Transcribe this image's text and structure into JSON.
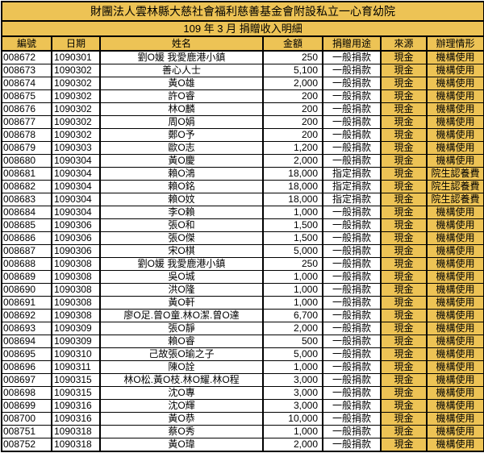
{
  "title": "財團法人雲林縣大慈社會福利慈善基金會附設私立一心育幼院",
  "subtitle": "109 年 3 月  捐贈收入明細",
  "colors": {
    "header_bg": "#EDC355",
    "border": "#000000",
    "row_bg": "#FFFFFF",
    "text": "#000000"
  },
  "table": {
    "columns": [
      {
        "key": "id",
        "label": "編號",
        "align": "left"
      },
      {
        "key": "date",
        "label": "日期",
        "align": "left"
      },
      {
        "key": "name",
        "label": "姓名",
        "align": "center"
      },
      {
        "key": "amount",
        "label": "金額",
        "align": "right"
      },
      {
        "key": "purpose",
        "label": "捐贈用途",
        "align": "center"
      },
      {
        "key": "source",
        "label": "來源",
        "align": "center"
      },
      {
        "key": "handling",
        "label": "辦理情形",
        "align": "center"
      }
    ],
    "rows": [
      [
        "008672",
        "1090301",
        "劉O媛 我愛鹿港小鎮",
        "250",
        "一般捐款",
        "現金",
        "機構使用"
      ],
      [
        "008673",
        "1090302",
        "善心人士",
        "5,100",
        "一般捐款",
        "現金",
        "機構使用"
      ],
      [
        "008674",
        "1090302",
        "黃O雄",
        "2,000",
        "一般捐款",
        "現金",
        "機構使用"
      ],
      [
        "008675",
        "1090302",
        "許O睿",
        "200",
        "一般捐款",
        "現金",
        "機構使用"
      ],
      [
        "008676",
        "1090302",
        "林O麟",
        "200",
        "一般捐款",
        "現金",
        "機構使用"
      ],
      [
        "008677",
        "1090302",
        "周O娟",
        "200",
        "一般捐款",
        "現金",
        "機構使用"
      ],
      [
        "008678",
        "1090302",
        "鄭O予",
        "200",
        "一般捐款",
        "現金",
        "機構使用"
      ],
      [
        "008679",
        "1090303",
        "歐O志",
        "1,200",
        "一般捐款",
        "現金",
        "機構使用"
      ],
      [
        "008680",
        "1090304",
        "黃O慶",
        "2,000",
        "一般捐款",
        "現金",
        "機構使用"
      ],
      [
        "008681",
        "1090304",
        "賴O鴻",
        "18,000",
        "指定捐款",
        "現金",
        "院生認養費"
      ],
      [
        "008682",
        "1090304",
        "賴O銘",
        "18,000",
        "指定捐款",
        "現金",
        "院生認養費"
      ],
      [
        "008683",
        "1090304",
        "賴O妏",
        "18,000",
        "指定捐款",
        "現金",
        "院生認養費"
      ],
      [
        "008684",
        "1090304",
        "李O賴",
        "1,000",
        "一般捐款",
        "現金",
        "機構使用"
      ],
      [
        "008685",
        "1090306",
        "張O和",
        "1,500",
        "一般捐款",
        "現金",
        "機構使用"
      ],
      [
        "008686",
        "1090306",
        "張O傑",
        "1,500",
        "一般捐款",
        "現金",
        "機構使用"
      ],
      [
        "008687",
        "1090306",
        "宋O棋",
        "5,000",
        "一般捐款",
        "現金",
        "機構使用"
      ],
      [
        "008688",
        "1090308",
        "劉O媛 我愛鹿港小鎮",
        "250",
        "一般捐款",
        "現金",
        "機構使用"
      ],
      [
        "008689",
        "1090308",
        "吳O城",
        "1,000",
        "一般捐款",
        "現金",
        "機構使用"
      ],
      [
        "008690",
        "1090308",
        "洪O隆",
        "1,000",
        "一般捐款",
        "現金",
        "機構使用"
      ],
      [
        "008691",
        "1090308",
        "黃O軒",
        "1,000",
        "一般捐款",
        "現金",
        "機構使用"
      ],
      [
        "008692",
        "1090308",
        "廖O足.曾O童.林O潔.曾O達",
        "6,700",
        "一般捐款",
        "現金",
        "機構使用"
      ],
      [
        "008693",
        "1090309",
        "張O靜",
        "2,000",
        "一般捐款",
        "現金",
        "機構使用"
      ],
      [
        "008694",
        "1090309",
        "賴O睿",
        "500",
        "一般捐款",
        "現金",
        "機構使用"
      ],
      [
        "008695",
        "1090310",
        "己故張O瑜之子",
        "5,000",
        "一般捐款",
        "現金",
        "機構使用"
      ],
      [
        "008696",
        "1090311",
        "陳O詮",
        "1,000",
        "一般捐款",
        "現金",
        "機構使用"
      ],
      [
        "008697",
        "1090315",
        "林O松.黃O枝.林O耀.林O程",
        "3,000",
        "一般捐款",
        "現金",
        "機構使用"
      ],
      [
        "008698",
        "1090315",
        "沈O專",
        "3,000",
        "一般捐款",
        "現金",
        "機構使用"
      ],
      [
        "008699",
        "1090316",
        "沈O輝",
        "3,000",
        "一般捐款",
        "現金",
        "機構使用"
      ],
      [
        "008700",
        "1090316",
        "黃O恭",
        "10,000",
        "一般捐款",
        "現金",
        "機構使用"
      ],
      [
        "008751",
        "1090318",
        "蔡O秀",
        "1,000",
        "一般捐款",
        "現金",
        "機構使用"
      ],
      [
        "008752",
        "1090318",
        "黃O瑋",
        "2,000",
        "一般捐款",
        "現金",
        "機構使用"
      ]
    ]
  }
}
